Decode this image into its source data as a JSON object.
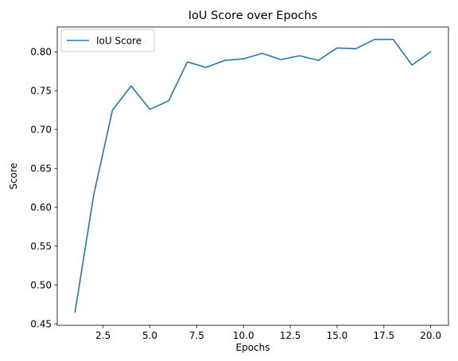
{
  "chart_data": {
    "type": "line",
    "title": "IoU Score over Epochs",
    "xlabel": "Epochs",
    "ylabel": "Score",
    "xlim": [
      0.05,
      20.95
    ],
    "ylim": [
      0.448,
      0.832
    ],
    "xticks": [
      2.5,
      5.0,
      7.5,
      10.0,
      12.5,
      15.0,
      17.5,
      20.0
    ],
    "xtick_labels": [
      "2.5",
      "5.0",
      "7.5",
      "10.0",
      "12.5",
      "15.0",
      "17.5",
      "20.0"
    ],
    "yticks": [
      0.45,
      0.5,
      0.55,
      0.6,
      0.65,
      0.7,
      0.75,
      0.8
    ],
    "ytick_labels": [
      "0.45",
      "0.50",
      "0.55",
      "0.60",
      "0.65",
      "0.70",
      "0.75",
      "0.80"
    ],
    "grid": false,
    "legend_position": "top-left",
    "series": [
      {
        "name": "IoU Score",
        "color": "#1f77b4",
        "x": [
          1,
          2,
          3,
          4,
          5,
          6,
          7,
          8,
          9,
          10,
          11,
          12,
          13,
          14,
          15,
          16,
          17,
          18,
          19,
          20
        ],
        "values": [
          0.465,
          0.616,
          0.725,
          0.756,
          0.726,
          0.737,
          0.787,
          0.78,
          0.789,
          0.791,
          0.798,
          0.79,
          0.795,
          0.789,
          0.805,
          0.804,
          0.816,
          0.816,
          0.783,
          0.8
        ]
      }
    ]
  }
}
